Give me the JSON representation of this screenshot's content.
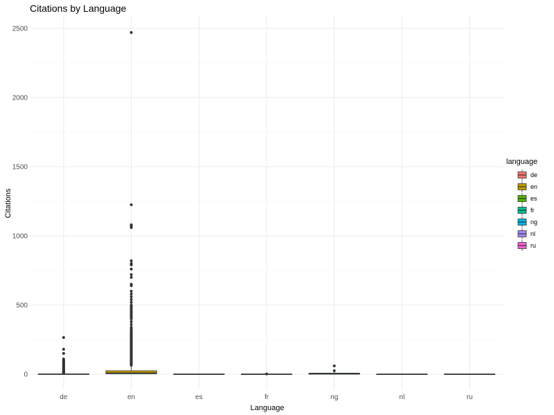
{
  "chart_data": {
    "type": "boxplot",
    "title": "Citations by Language",
    "xlabel": "Language",
    "ylabel": "Citations",
    "ylim": [
      -110,
      2590
    ],
    "yticks": [
      0,
      500,
      1000,
      1500,
      2000,
      2500
    ],
    "ytick_labels": [
      "0",
      "500",
      "1000",
      "1500",
      "2000",
      "2500"
    ],
    "categories": [
      "de",
      "en",
      "es",
      "fr",
      "ng",
      "nl",
      "ru"
    ],
    "grid": true,
    "legend": {
      "title": "language",
      "placement": "right",
      "entries": [
        "de",
        "en",
        "es",
        "fr",
        "ng",
        "nl",
        "ru"
      ]
    },
    "colors": {
      "de": "#F8766D",
      "en": "#C49A00",
      "es": "#53B400",
      "fr": "#00C094",
      "ng": "#00B6EB",
      "nl": "#A58AFF",
      "ru": "#FB61D7"
    },
    "boxes": [
      {
        "category": "de",
        "min": 0,
        "q1": 0,
        "median": 0,
        "q3": 2,
        "max": 5,
        "outliers": [
          8,
          10,
          12,
          15,
          18,
          20,
          22,
          25,
          28,
          30,
          33,
          36,
          40,
          45,
          50,
          55,
          60,
          65,
          70,
          75,
          80,
          85,
          90,
          95,
          100,
          110,
          150,
          180,
          265
        ]
      },
      {
        "category": "en",
        "min": 0,
        "q1": 3,
        "median": 8,
        "q3": 25,
        "max": 60,
        "outliers": [
          65,
          70,
          75,
          80,
          85,
          90,
          95,
          100,
          105,
          110,
          115,
          120,
          125,
          130,
          135,
          140,
          145,
          150,
          155,
          160,
          165,
          170,
          175,
          180,
          185,
          190,
          195,
          200,
          205,
          210,
          215,
          220,
          225,
          230,
          235,
          240,
          245,
          250,
          255,
          260,
          265,
          270,
          275,
          280,
          285,
          290,
          295,
          300,
          310,
          320,
          330,
          340,
          360,
          380,
          400,
          410,
          420,
          430,
          440,
          450,
          460,
          470,
          480,
          490,
          500,
          520,
          540,
          560,
          580,
          600,
          640,
          650,
          700,
          720,
          760,
          790,
          800,
          820,
          1060,
          1070,
          1080,
          1225,
          2470
        ]
      },
      {
        "category": "es",
        "min": 0,
        "q1": 0,
        "median": 0,
        "q3": 1,
        "max": 3,
        "outliers": []
      },
      {
        "category": "fr",
        "min": 0,
        "q1": 0,
        "median": 0,
        "q3": 1,
        "max": 3,
        "outliers": [
          2
        ]
      },
      {
        "category": "ng",
        "min": 0,
        "q1": 0,
        "median": 2,
        "q3": 8,
        "max": 15,
        "outliers": [
          25,
          60
        ]
      },
      {
        "category": "nl",
        "min": 0,
        "q1": 0,
        "median": 0,
        "q3": 1,
        "max": 2,
        "outliers": []
      },
      {
        "category": "ru",
        "min": 0,
        "q1": 0,
        "median": 0,
        "q3": 1,
        "max": 2,
        "outliers": []
      }
    ]
  }
}
